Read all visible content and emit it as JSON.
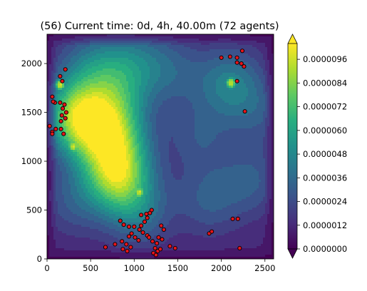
{
  "chart_data": {
    "type": "heatmap",
    "title": "(56) Current time: 0d, 4h, 40.00m (72 agents)",
    "xlabel": "",
    "ylabel": "",
    "xlim": [
      0,
      2600
    ],
    "ylim": [
      0,
      2300
    ],
    "x_ticks": [
      "0",
      "500",
      "1000",
      "1500",
      "2000",
      "2500"
    ],
    "y_ticks": [
      "0",
      "500",
      "1000",
      "1500",
      "2000"
    ],
    "colormap": "viridis",
    "colorbar": {
      "range": [
        0,
        1.04e-05
      ],
      "extend": "both",
      "ticks": [
        "0.0000000",
        "0.0000012",
        "0.0000024",
        "0.0000036",
        "0.0000048",
        "0.0000060",
        "0.0000072",
        "0.0000084",
        "0.0000096"
      ]
    },
    "field_background": 1.2e-06,
    "field_peaks": [
      {
        "x": 800,
        "y": 850,
        "value": 8e-06
      },
      {
        "x": 800,
        "y": 1200,
        "value": 5.5e-06
      },
      {
        "x": 780,
        "y": 1550,
        "value": 4.5e-06
      },
      {
        "x": 820,
        "y": 1950,
        "value": 4e-06
      },
      {
        "x": 450,
        "y": 1950,
        "value": 3.5e-06
      },
      {
        "x": 1150,
        "y": 2000,
        "value": 3e-06
      },
      {
        "x": 1500,
        "y": 1900,
        "value": 2.8e-06
      },
      {
        "x": 1750,
        "y": 1250,
        "value": 3e-06
      },
      {
        "x": 1850,
        "y": 600,
        "value": 3.2e-06
      },
      {
        "x": 2350,
        "y": 800,
        "value": 3.2e-06
      },
      {
        "x": 2450,
        "y": 1500,
        "value": 2.8e-06
      },
      {
        "x": 300,
        "y": 600,
        "value": 3e-06
      },
      {
        "x": 450,
        "y": 1350,
        "value": 6e-06
      },
      {
        "x": 300,
        "y": 1500,
        "value": 5.5e-06
      },
      {
        "x": 1050,
        "y": 500,
        "value": 4e-06
      },
      {
        "x": 2100,
        "y": 1800,
        "value": 4.5e-06
      }
    ],
    "hotspots": [
      {
        "x": 150,
        "y": 1780,
        "value": 1e-05
      },
      {
        "x": 280,
        "y": 1500,
        "value": 1e-05
      },
      {
        "x": 430,
        "y": 1340,
        "value": 1e-05
      },
      {
        "x": 300,
        "y": 1150,
        "value": 1e-05
      },
      {
        "x": 1060,
        "y": 680,
        "value": 1e-05
      },
      {
        "x": 2110,
        "y": 1800,
        "value": 1e-05
      }
    ],
    "agents": [
      [
        150,
        1870
      ],
      [
        175,
        1820
      ],
      [
        210,
        1940
      ],
      [
        60,
        1660
      ],
      [
        90,
        1600
      ],
      [
        70,
        1610
      ],
      [
        150,
        1600
      ],
      [
        200,
        1580
      ],
      [
        180,
        1540
      ],
      [
        220,
        1500
      ],
      [
        170,
        1470
      ],
      [
        210,
        1440
      ],
      [
        160,
        1410
      ],
      [
        30,
        1360
      ],
      [
        60,
        1300
      ],
      [
        100,
        1330
      ],
      [
        160,
        1330
      ],
      [
        190,
        1280
      ],
      [
        60,
        1280
      ],
      [
        2000,
        2060
      ],
      [
        2100,
        2070
      ],
      [
        2180,
        2060
      ],
      [
        2240,
        2130
      ],
      [
        2180,
        2010
      ],
      [
        2230,
        2000
      ],
      [
        2260,
        1970
      ],
      [
        2180,
        1820
      ],
      [
        2270,
        1510
      ],
      [
        670,
        120
      ],
      [
        780,
        150
      ],
      [
        860,
        180
      ],
      [
        910,
        150
      ],
      [
        870,
        100
      ],
      [
        920,
        80
      ],
      [
        960,
        120
      ],
      [
        940,
        230
      ],
      [
        970,
        260
      ],
      [
        1010,
        220
      ],
      [
        1050,
        190
      ],
      [
        840,
        390
      ],
      [
        880,
        350
      ],
      [
        940,
        330
      ],
      [
        1000,
        330
      ],
      [
        1060,
        300
      ],
      [
        1100,
        270
      ],
      [
        1080,
        340
      ],
      [
        1120,
        380
      ],
      [
        1150,
        420
      ],
      [
        1180,
        470
      ],
      [
        1200,
        500
      ],
      [
        1140,
        460
      ],
      [
        1080,
        450
      ],
      [
        1150,
        240
      ],
      [
        1170,
        220
      ],
      [
        1210,
        180
      ],
      [
        1260,
        160
      ],
      [
        1240,
        110
      ],
      [
        1270,
        80
      ],
      [
        1220,
        60
      ],
      [
        1250,
        40
      ],
      [
        1300,
        100
      ],
      [
        1320,
        200
      ],
      [
        1280,
        220
      ],
      [
        1310,
        340
      ],
      [
        1340,
        300
      ],
      [
        1410,
        130
      ],
      [
        1470,
        110
      ],
      [
        1860,
        260
      ],
      [
        1890,
        280
      ],
      [
        2130,
        410
      ],
      [
        2190,
        410
      ],
      [
        2210,
        110
      ]
    ]
  }
}
